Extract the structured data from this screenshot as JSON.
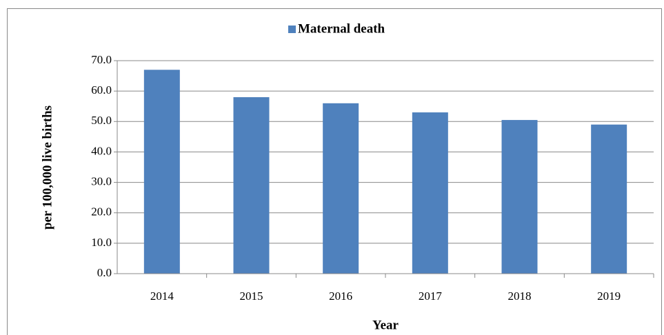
{
  "chart_data": {
    "type": "bar",
    "legend": "Maternal death",
    "y_label": "per 100,000 live births",
    "x_label": "Year",
    "categories": [
      "2014",
      "2015",
      "2016",
      "2017",
      "2018",
      "2019"
    ],
    "series": [
      {
        "name": "Maternal death",
        "color": "#4f81bd",
        "values": [
          67.0,
          58.0,
          56.0,
          53.0,
          50.5,
          49.0
        ]
      }
    ],
    "ylim": [
      0,
      70
    ],
    "yticks": [
      {
        "value": 0,
        "label": "0.0"
      },
      {
        "value": 10,
        "label": "10.0"
      },
      {
        "value": 20,
        "label": "20.0"
      },
      {
        "value": 30,
        "label": "30.0"
      },
      {
        "value": 40,
        "label": "40.0"
      },
      {
        "value": 50,
        "label": "50.0"
      },
      {
        "value": 60,
        "label": "60.0"
      },
      {
        "value": 70,
        "label": "70.0"
      }
    ],
    "grid": true
  }
}
